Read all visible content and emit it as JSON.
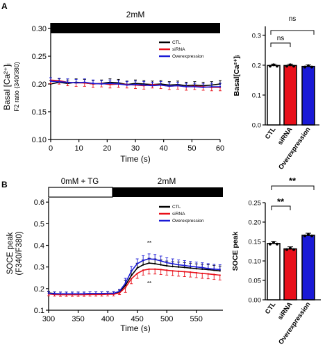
{
  "panels": {
    "A": {
      "letter": "A",
      "bar_label": "2mM",
      "line": {
        "ylabel_main": "Basal [Ca²⁺]ᵢ",
        "ylabel_sub": "F2 ratio (340/380)",
        "xlabel": "Time (s)",
        "xticks": [
          "0",
          "10",
          "20",
          "30",
          "40",
          "50",
          "60"
        ],
        "yticks": [
          "0.10",
          "0.15",
          "0.20",
          "0.25",
          "0.30"
        ],
        "legend": [
          "CTL",
          "siRNA",
          "Overexpression"
        ]
      },
      "bar": {
        "ylabel": "Basal[Ca²⁺]ᵢ",
        "yticks": [
          "0.0",
          "0.1",
          "0.2",
          "0.3"
        ],
        "categories": [
          "CTL",
          "siRNA",
          "Overexpression"
        ],
        "sig": [
          "ns",
          "ns"
        ]
      }
    },
    "B": {
      "letter": "B",
      "bar_label_left": "0mM + TG",
      "bar_label_right": "2mM",
      "line": {
        "ylabel_main": "SOCE peak",
        "ylabel_sub": "(F340/F380)",
        "xlabel": "Time (s)",
        "xticks": [
          "300",
          "350",
          "400",
          "450",
          "500",
          "550"
        ],
        "yticks": [
          "0.1",
          "0.2",
          "0.3",
          "0.4",
          "0.5",
          "0.6"
        ],
        "legend": [
          "CTL",
          "siRNA",
          "Overexpression"
        ],
        "sig_top": "**",
        "sig_bottom": "**"
      },
      "bar": {
        "ylabel": "SOCE peak",
        "yticks": [
          "0.00",
          "0.05",
          "0.10",
          "0.15",
          "0.20",
          "0.25"
        ],
        "categories": [
          "CTL",
          "siRNA",
          "Overexpression"
        ],
        "sig": [
          "**",
          "**"
        ]
      }
    }
  },
  "colors": {
    "ctl": "#000000",
    "sirna": "#e8101a",
    "over": "#1a1ad6"
  },
  "chart_data": [
    {
      "type": "line",
      "xlim": [
        0,
        60
      ],
      "ylim": [
        0.1,
        0.31
      ],
      "xlabel": "Time (s)",
      "ylabel": "Basal [Ca²⁺]ᵢ F2 ratio (340/380)",
      "series": [
        {
          "name": "CTL",
          "x": [
            0,
            3,
            6,
            9,
            12,
            15,
            18,
            21,
            24,
            27,
            30,
            33,
            36,
            39,
            42,
            45,
            48,
            51,
            54,
            57,
            60
          ],
          "values": [
            0.2,
            0.203,
            0.201,
            0.203,
            0.202,
            0.2,
            0.201,
            0.203,
            0.202,
            0.199,
            0.201,
            0.2,
            0.199,
            0.2,
            0.198,
            0.199,
            0.197,
            0.198,
            0.197,
            0.198,
            0.2
          ]
        },
        {
          "name": "siRNA",
          "x": [
            0,
            3,
            6,
            9,
            12,
            15,
            18,
            21,
            24,
            27,
            30,
            33,
            36,
            39,
            42,
            45,
            48,
            51,
            54,
            57,
            60
          ],
          "values": [
            0.207,
            0.206,
            0.203,
            0.202,
            0.202,
            0.2,
            0.201,
            0.199,
            0.2,
            0.199,
            0.198,
            0.197,
            0.199,
            0.198,
            0.196,
            0.197,
            0.195,
            0.196,
            0.195,
            0.194,
            0.194
          ]
        },
        {
          "name": "Overexpression",
          "x": [
            0,
            3,
            6,
            9,
            12,
            15,
            18,
            21,
            24,
            27,
            30,
            33,
            36,
            39,
            42,
            45,
            48,
            51,
            54,
            57,
            60
          ],
          "values": [
            0.205,
            0.204,
            0.203,
            0.202,
            0.203,
            0.201,
            0.2,
            0.201,
            0.2,
            0.198,
            0.199,
            0.198,
            0.197,
            0.198,
            0.196,
            0.197,
            0.195,
            0.195,
            0.194,
            0.195,
            0.195
          ]
        }
      ]
    },
    {
      "type": "bar",
      "categories": [
        "CTL",
        "siRNA",
        "Overexpression"
      ],
      "values": [
        0.199,
        0.199,
        0.196
      ],
      "ylim": [
        0,
        0.33
      ],
      "ylabel": "Basal[Ca²⁺]ᵢ"
    },
    {
      "type": "line",
      "xlim": [
        300,
        595
      ],
      "ylim": [
        0.1,
        0.62
      ],
      "xlabel": "Time (s)",
      "ylabel": "SOCE peak (F340/F380)",
      "series": [
        {
          "name": "CTL",
          "x": [
            300,
            310,
            320,
            330,
            340,
            350,
            360,
            370,
            380,
            390,
            400,
            410,
            420,
            430,
            440,
            450,
            460,
            470,
            480,
            490,
            500,
            510,
            520,
            530,
            540,
            550,
            560,
            570,
            580,
            590
          ],
          "values": [
            0.18,
            0.177,
            0.176,
            0.176,
            0.176,
            0.176,
            0.176,
            0.177,
            0.177,
            0.177,
            0.178,
            0.178,
            0.185,
            0.215,
            0.26,
            0.295,
            0.31,
            0.318,
            0.315,
            0.31,
            0.305,
            0.302,
            0.3,
            0.298,
            0.295,
            0.292,
            0.29,
            0.288,
            0.285,
            0.282
          ]
        },
        {
          "name": "siRNA",
          "x": [
            300,
            310,
            320,
            330,
            340,
            350,
            360,
            370,
            380,
            390,
            400,
            410,
            420,
            430,
            440,
            450,
            460,
            470,
            480,
            490,
            500,
            510,
            520,
            530,
            540,
            550,
            560,
            570,
            580,
            590
          ],
          "values": [
            0.175,
            0.173,
            0.172,
            0.172,
            0.172,
            0.172,
            0.172,
            0.173,
            0.173,
            0.173,
            0.174,
            0.174,
            0.18,
            0.205,
            0.245,
            0.27,
            0.285,
            0.29,
            0.29,
            0.288,
            0.285,
            0.282,
            0.28,
            0.278,
            0.276,
            0.273,
            0.27,
            0.268,
            0.265,
            0.262
          ]
        },
        {
          "name": "Overexpression",
          "x": [
            300,
            310,
            320,
            330,
            340,
            350,
            360,
            370,
            380,
            390,
            400,
            410,
            420,
            430,
            440,
            450,
            460,
            470,
            480,
            490,
            500,
            510,
            520,
            530,
            540,
            550,
            560,
            570,
            580,
            590
          ],
          "values": [
            0.178,
            0.176,
            0.176,
            0.176,
            0.176,
            0.176,
            0.176,
            0.177,
            0.177,
            0.177,
            0.178,
            0.178,
            0.188,
            0.225,
            0.28,
            0.315,
            0.33,
            0.338,
            0.335,
            0.328,
            0.32,
            0.315,
            0.31,
            0.307,
            0.303,
            0.3,
            0.297,
            0.293,
            0.29,
            0.288
          ]
        }
      ]
    },
    {
      "type": "bar",
      "categories": [
        "CTL",
        "siRNA",
        "Overexpression"
      ],
      "values": [
        0.145,
        0.131,
        0.166
      ],
      "ylim": [
        0,
        0.25
      ],
      "ylabel": "SOCE peak"
    }
  ]
}
